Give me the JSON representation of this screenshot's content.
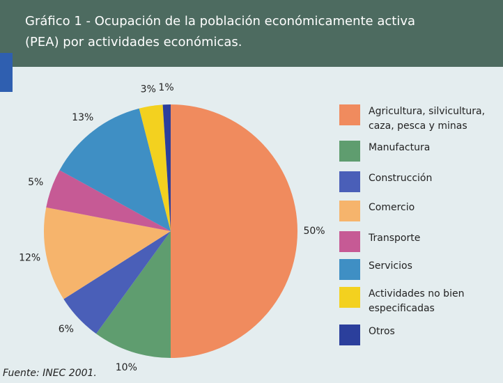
{
  "chart_data": {
    "type": "pie",
    "title": "Gráfico 1 - Ocupación de la población económicamente activa (PEA) por actividades económicas.",
    "categories": [
      "Agricultura, silvicultura, caza, pesca y minas",
      "Manufactura",
      "Construcción",
      "Comercio",
      "Transporte",
      "Servicios",
      "Actividades no bien especificadas",
      "Otros"
    ],
    "values": [
      50,
      10,
      6,
      12,
      5,
      13,
      3,
      1
    ],
    "value_labels": [
      "50%",
      "10%",
      "6%",
      "12%",
      "5%",
      "13%",
      "3%",
      "1%"
    ],
    "colors": [
      "#f08b5e",
      "#5f9d6f",
      "#4a5fb8",
      "#f6b46c",
      "#c65a95",
      "#3f8fc4",
      "#f3d11f",
      "#2b3f9c"
    ],
    "source": "Fuente: INEC 2001."
  }
}
